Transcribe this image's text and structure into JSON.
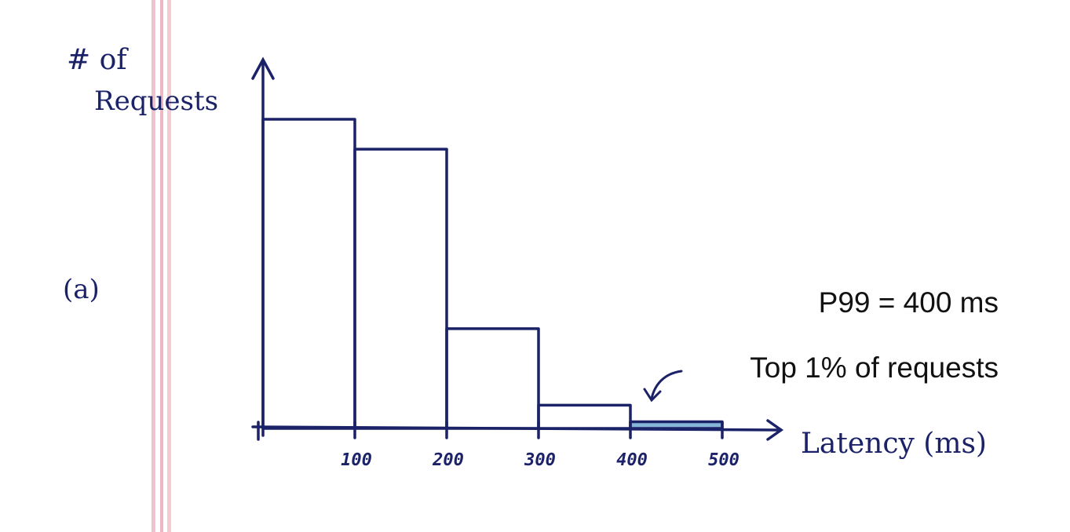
{
  "chart_data": {
    "type": "bar",
    "panel_label": "(a)",
    "xlabel": "Latency (ms)",
    "ylabel_line1": "# of",
    "ylabel_line2": "Requests",
    "bin_edges": [
      0,
      100,
      200,
      300,
      400,
      500
    ],
    "tick_labels": [
      "100",
      "200",
      "300",
      "400",
      "500"
    ],
    "values": [
      93,
      84,
      30,
      7,
      2
    ],
    "ylim": [
      0,
      110
    ],
    "highlight_bin": 4,
    "annotations": {
      "p99": "P99 = 400 ms",
      "top": "Top 1% of requests"
    },
    "colors": {
      "ink": "#1b2268",
      "highlight": "#5d9cc9",
      "margin_line": "#efb7c4"
    }
  }
}
